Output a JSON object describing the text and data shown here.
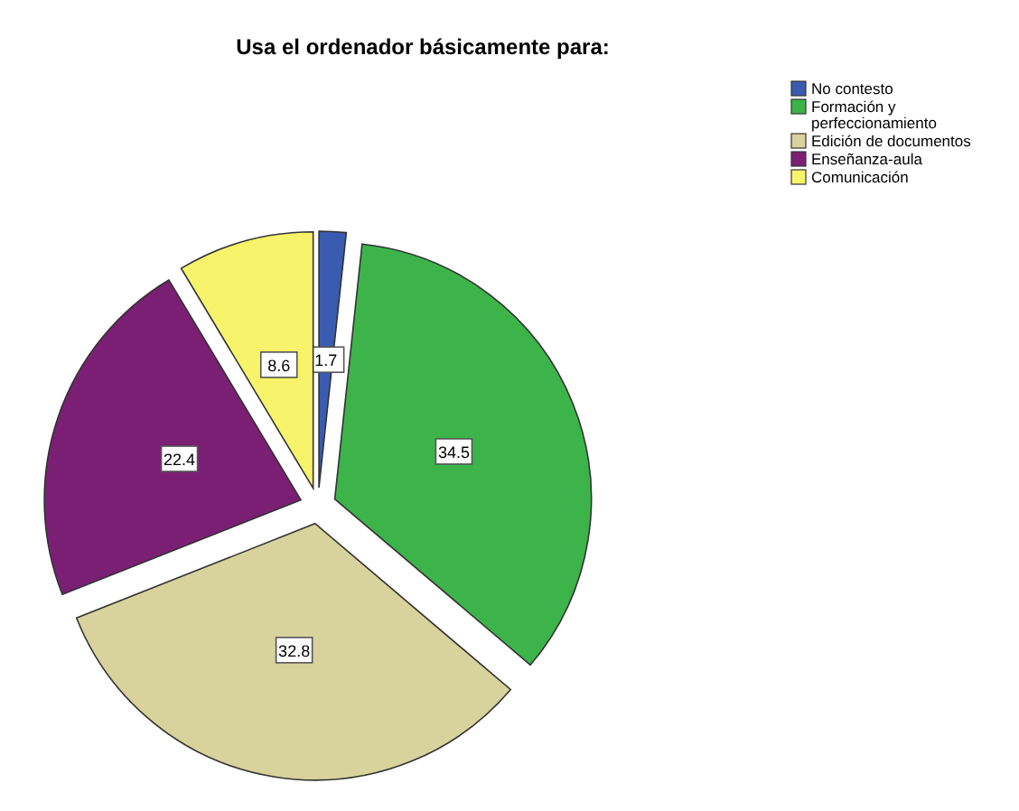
{
  "chart_data": {
    "type": "pie",
    "title": "Usa el ordenador básicamente para:",
    "categories": [
      "No contesto",
      "Formación y perfeccionamiento",
      "Edición de documentos",
      "Enseñanza-aula",
      "Comunicación"
    ],
    "values": [
      1.7,
      34.5,
      32.8,
      22.4,
      8.6
    ],
    "colors": [
      "#3a5cb0",
      "#3cb44a",
      "#d8d29c",
      "#7b1f75",
      "#f7f36a"
    ],
    "data_labels": true,
    "legend": "top right"
  }
}
